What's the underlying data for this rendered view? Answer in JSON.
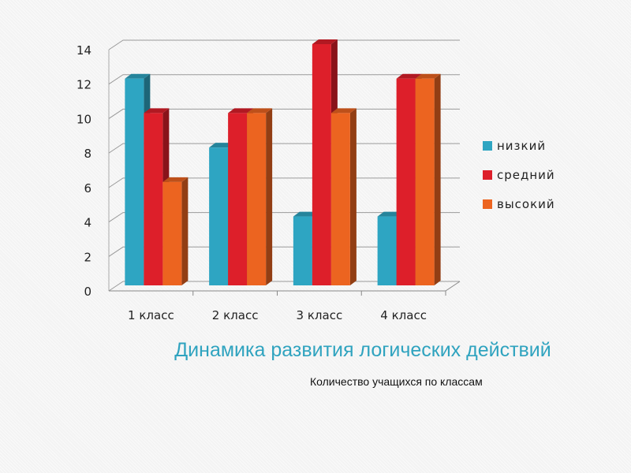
{
  "chart_data": {
    "type": "bar",
    "title": "Динамика развития логических действий",
    "subtitle": "Количество учащихся по классам",
    "categories": [
      "1 класс",
      "2 класс",
      "3 класс",
      "4 класс"
    ],
    "series": [
      {
        "name": "низкий",
        "values": [
          12,
          8,
          4,
          4
        ],
        "color": "#2ea5c2"
      },
      {
        "name": "средний",
        "values": [
          10,
          10,
          14,
          12
        ],
        "color": "#dd1f2a"
      },
      {
        "name": "высокий",
        "values": [
          6,
          10,
          10,
          12
        ],
        "color": "#ec6420"
      }
    ],
    "ylim": [
      0,
      14
    ],
    "yticks": [
      "0",
      "2",
      "4",
      "6",
      "8",
      "10",
      "12",
      "14"
    ],
    "grid": true,
    "legend": "right"
  }
}
